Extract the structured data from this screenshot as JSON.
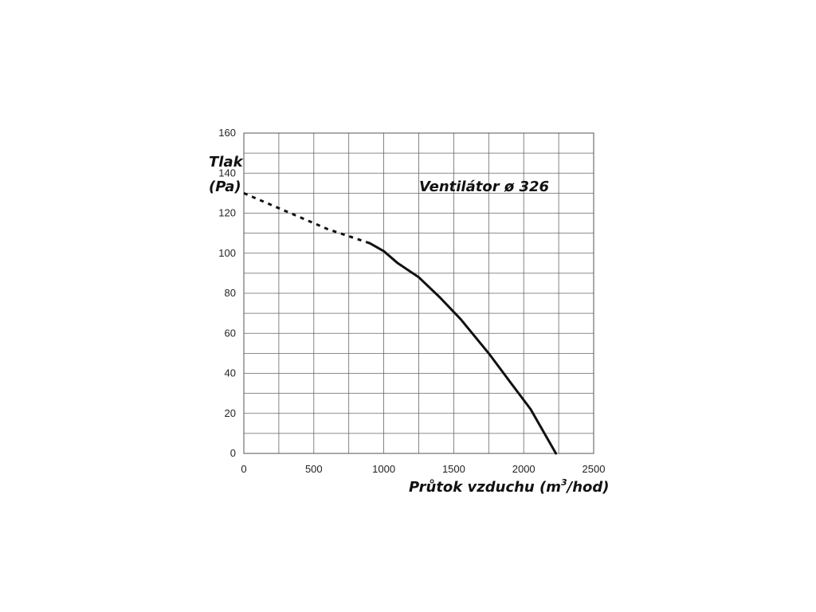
{
  "chart_data": {
    "type": "line",
    "title": "Ventilátor ø 326",
    "xlabel": "Průtok vzduchu (m",
    "xlabel_sup": "3",
    "xlabel_suffix": "/hod)",
    "ylabel": [
      "Tlak",
      "(Pa)"
    ],
    "xlim": [
      0,
      2500
    ],
    "ylim": [
      0,
      160
    ],
    "x_ticks": [
      0,
      500,
      1000,
      1500,
      2000,
      2500
    ],
    "y_ticks": [
      0,
      20,
      40,
      60,
      80,
      100,
      120,
      140,
      160
    ],
    "x_grid_step": 250,
    "y_grid_step": 10,
    "grid": true,
    "colors": {
      "line": "#111111",
      "grid": "#666666"
    },
    "series": [
      {
        "style": "dashed",
        "x": [
          0,
          300,
          600,
          900
        ],
        "y": [
          130,
          121,
          112,
          105
        ]
      },
      {
        "style": "solid",
        "x": [
          900,
          1000,
          1100,
          1250,
          1400,
          1550,
          1750,
          1900,
          2050,
          2230
        ],
        "y": [
          105,
          101,
          95,
          88,
          78,
          67,
          50,
          36,
          22,
          0
        ]
      }
    ]
  }
}
